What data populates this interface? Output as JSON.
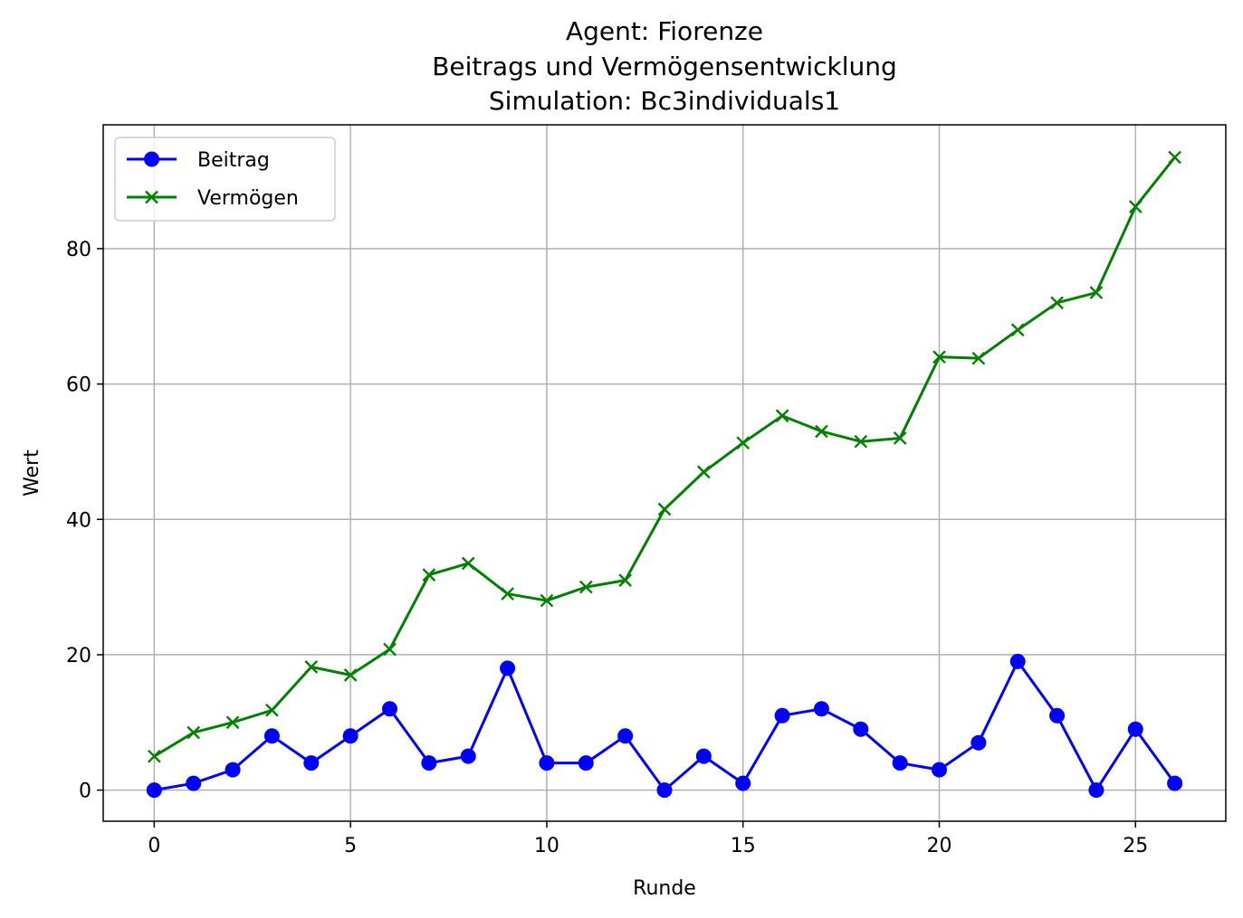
{
  "chart_data": {
    "type": "line",
    "title_lines": [
      "Agent: Fiorenze",
      "Beitrags und Vermögensentwicklung",
      "Simulation: Bc3individuals1"
    ],
    "xlabel": "Runde",
    "ylabel": "Wert",
    "xlim": [
      -1.3,
      27.3
    ],
    "ylim": [
      -4.6,
      98.3
    ],
    "xticks": [
      0,
      5,
      10,
      15,
      20,
      25
    ],
    "yticks": [
      0,
      20,
      40,
      60,
      80
    ],
    "grid": true,
    "legend_position": "top-left",
    "x": [
      0,
      1,
      2,
      3,
      4,
      5,
      6,
      7,
      8,
      9,
      10,
      11,
      12,
      13,
      14,
      15,
      16,
      17,
      18,
      19,
      20,
      21,
      22,
      23,
      24,
      25,
      26
    ],
    "series": [
      {
        "name": "Beitrag",
        "color": "#0000ff",
        "marker": "circle",
        "values": [
          0,
          1,
          3,
          8,
          4,
          8,
          12,
          4,
          5,
          18,
          4,
          4,
          8,
          0,
          5,
          1,
          11,
          12,
          9,
          4,
          3,
          7,
          19,
          11,
          0,
          9,
          1
        ]
      },
      {
        "name": "Vermögen",
        "color": "#008000",
        "marker": "x",
        "values": [
          5,
          8.5,
          10,
          11.8,
          18.2,
          17,
          20.8,
          31.8,
          33.5,
          29,
          28,
          30,
          31,
          41.5,
          47,
          51.3,
          55.3,
          53,
          51.5,
          52,
          64,
          63.8,
          68,
          72,
          73.5,
          86.2,
          93.5
        ]
      }
    ]
  }
}
